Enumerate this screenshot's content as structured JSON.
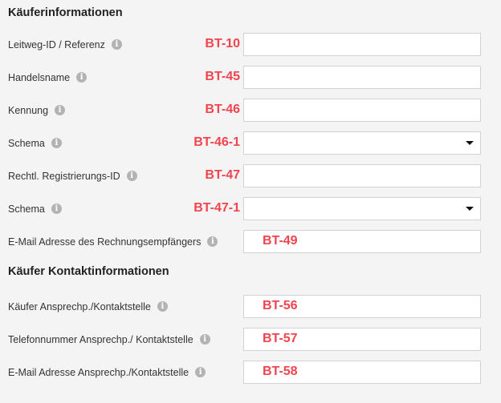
{
  "sections": [
    {
      "title": "Käuferinformationen"
    },
    {
      "title": "Käufer Kontaktinformationen"
    }
  ],
  "accent_color": "#f2444e",
  "info_icon": "info-circle-icon",
  "fields": [
    {
      "label": "Leitweg-ID / Referenz",
      "tag": "BT-10",
      "type": "text",
      "value": ""
    },
    {
      "label": "Handelsname",
      "tag": "BT-45",
      "type": "text",
      "value": ""
    },
    {
      "label": "Kennung",
      "tag": "BT-46",
      "type": "text",
      "value": ""
    },
    {
      "label": "Schema",
      "tag": "BT-46-1",
      "type": "select",
      "value": ""
    },
    {
      "label": "Rechtl. Registrierungs-ID",
      "tag": "BT-47",
      "type": "text",
      "value": ""
    },
    {
      "label": "Schema",
      "tag": "BT-47-1",
      "type": "select",
      "value": ""
    },
    {
      "label": "E-Mail Adresse des Rechnungsempfängers",
      "tag": "BT-49",
      "type": "text",
      "value": ""
    },
    {
      "label": "Käufer Ansprechp./Kontaktstelle",
      "tag": "BT-56",
      "type": "text",
      "value": ""
    },
    {
      "label": "Telefonnummer Ansprechp./ Kontaktstelle",
      "tag": "BT-57",
      "type": "text",
      "value": ""
    },
    {
      "label": "E-Mail Adresse Ansprechp./Kontaktstelle",
      "tag": "BT-58",
      "type": "text",
      "value": ""
    }
  ]
}
